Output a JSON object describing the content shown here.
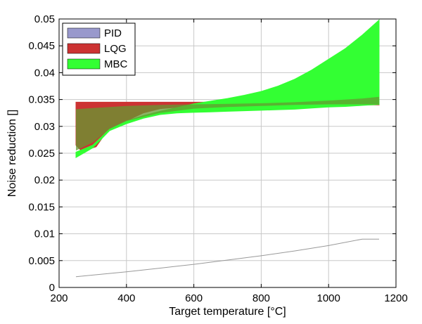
{
  "chart_data": {
    "type": "area",
    "xlabel": "Target temperature [°C]",
    "ylabel": "Noise reduction []",
    "xlim": [
      200,
      1200
    ],
    "ylim": [
      0,
      0.05
    ],
    "xticks": [
      "200",
      "400",
      "600",
      "800",
      "1000",
      "1200"
    ],
    "yticks": [
      "0",
      "0.005",
      "0.01",
      "0.015",
      "0.02",
      "0.025",
      "0.03",
      "0.035",
      "0.04",
      "0.045",
      "0.05"
    ],
    "grid": true,
    "legend_position": "top-left",
    "series": [
      {
        "name": "PID",
        "color": "#9999cc",
        "kind": "band",
        "x": [
          250,
          1150
        ],
        "upper": [
          0.03425,
          0.03425
        ],
        "lower": [
          0.03415,
          0.03415
        ]
      },
      {
        "name": "LQG",
        "color": "#cc3333",
        "kind": "band",
        "x": [
          250,
          270,
          290,
          310,
          330,
          350,
          380,
          400,
          450,
          500,
          600,
          700,
          800,
          900,
          1000,
          1100,
          1150
        ],
        "upper": [
          0.0345,
          0.0345,
          0.0345,
          0.0345,
          0.0345,
          0.0345,
          0.0345,
          0.0345,
          0.0345,
          0.0345,
          0.0345,
          0.0345,
          0.0345,
          0.0345,
          0.0345,
          0.0345,
          0.0345
        ],
        "lower": [
          0.0265,
          0.0252,
          0.0258,
          0.0262,
          0.028,
          0.0295,
          0.0305,
          0.031,
          0.0325,
          0.0333,
          0.0338,
          0.034,
          0.034,
          0.034,
          0.034,
          0.034,
          0.034
        ]
      },
      {
        "name": "MBC",
        "color": "#33ff33",
        "kind": "band",
        "x": [
          250,
          300,
          350,
          400,
          450,
          500,
          550,
          600,
          650,
          700,
          750,
          800,
          850,
          900,
          950,
          1000,
          1050,
          1100,
          1150
        ],
        "upper": [
          0.0252,
          0.0265,
          0.0295,
          0.031,
          0.032,
          0.0328,
          0.0335,
          0.0342,
          0.0347,
          0.0352,
          0.0358,
          0.0365,
          0.0375,
          0.0388,
          0.0405,
          0.0425,
          0.0445,
          0.047,
          0.0498
        ],
        "lower": [
          0.0242,
          0.026,
          0.0292,
          0.0305,
          0.0315,
          0.0322,
          0.0325,
          0.0326,
          0.0327,
          0.0328,
          0.0329,
          0.033,
          0.0331,
          0.0332,
          0.0334,
          0.0336,
          0.0337,
          0.0339,
          0.0341
        ]
      },
      {
        "name": "",
        "color": "#999999",
        "kind": "line",
        "x": [
          250,
          300,
          400,
          500,
          600,
          700,
          800,
          900,
          1000,
          1100,
          1150
        ],
        "y": [
          0.002,
          0.0023,
          0.0029,
          0.0036,
          0.0043,
          0.0051,
          0.0059,
          0.0068,
          0.0078,
          0.009,
          0.009
        ]
      }
    ],
    "overlay": {
      "color": "#669933",
      "x": [
        250,
        300,
        350,
        400,
        500,
        600,
        700,
        800,
        900,
        1000,
        1100,
        1150
      ],
      "upper": [
        0.0332,
        0.0334,
        0.0336,
        0.0338,
        0.034,
        0.0341,
        0.0342,
        0.0343,
        0.0345,
        0.0348,
        0.0352,
        0.0355
      ],
      "lower": [
        0.0255,
        0.027,
        0.0295,
        0.031,
        0.0325,
        0.0333,
        0.0336,
        0.0338,
        0.034,
        0.0341,
        0.0341,
        0.0341
      ]
    }
  }
}
